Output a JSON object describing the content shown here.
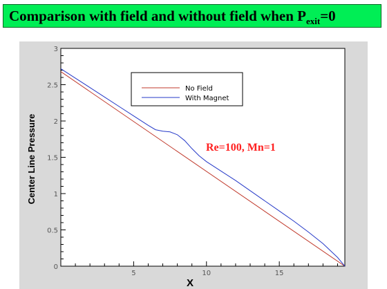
{
  "header": {
    "title_main": "Comparison with field and without field when P",
    "title_sub": "exit",
    "title_tail": "=0"
  },
  "chart_data": {
    "type": "line",
    "xlabel": "X",
    "ylabel": "Center Line Pressure",
    "xlim": [
      0,
      19.5
    ],
    "ylim": [
      0,
      3
    ],
    "x_ticks": [
      5,
      10,
      15
    ],
    "x_tick_labels": [
      "5",
      "10",
      "15"
    ],
    "y_ticks": [
      0,
      0.5,
      1,
      1.5,
      2,
      2.5,
      3
    ],
    "y_tick_labels": [
      "0",
      "0.5",
      "1",
      "1.5",
      "2",
      "2.5",
      "3"
    ],
    "grid": false,
    "legend_position": "top-center",
    "annotation": "Re=100, Mn=1",
    "series": [
      {
        "name": "No Field",
        "color": "#c0392b",
        "x": [
          0,
          19.5
        ],
        "y": [
          2.68,
          0
        ]
      },
      {
        "name": "With Magnet",
        "color": "#2438c8",
        "x": [
          0,
          1,
          2,
          3,
          4,
          5,
          6,
          6.5,
          7,
          7.5,
          8,
          8.5,
          9,
          9.5,
          10,
          11,
          12,
          13,
          14,
          15,
          16,
          17,
          18,
          19,
          19.5
        ],
        "y": [
          2.72,
          2.59,
          2.46,
          2.33,
          2.2,
          2.07,
          1.94,
          1.88,
          1.86,
          1.85,
          1.81,
          1.73,
          1.62,
          1.52,
          1.44,
          1.31,
          1.18,
          1.04,
          0.9,
          0.76,
          0.62,
          0.47,
          0.31,
          0.12,
          0
        ]
      }
    ]
  }
}
